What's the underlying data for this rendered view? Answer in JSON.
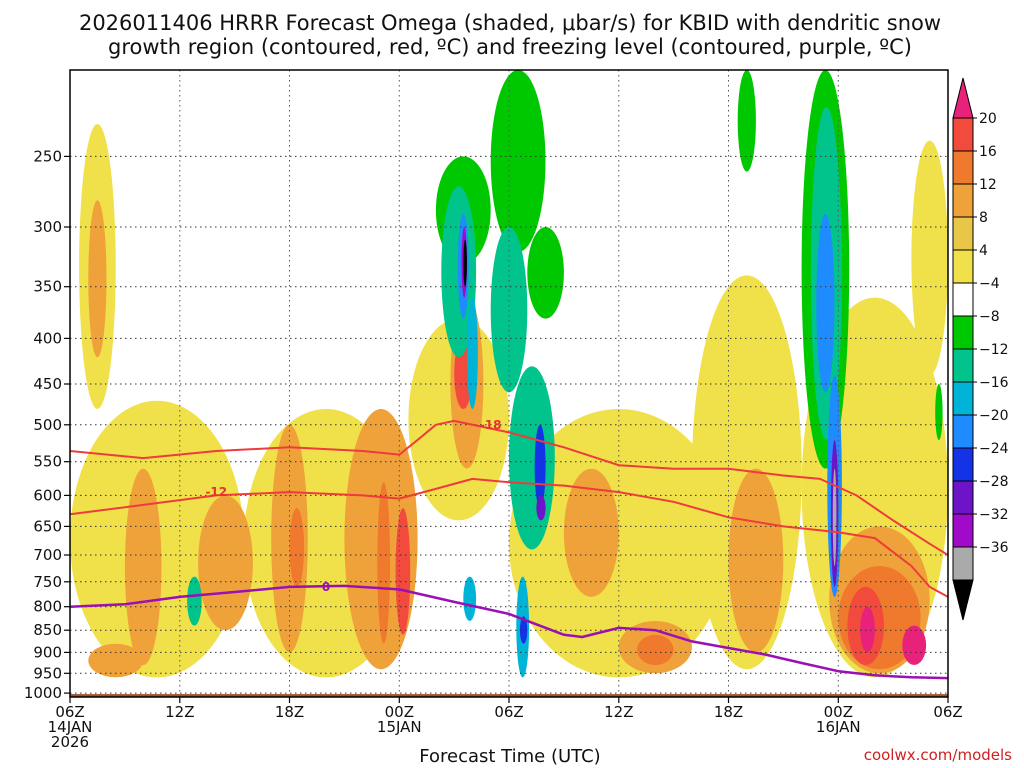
{
  "chart_data": {
    "type": "heatmap",
    "title_lines": [
      "2026011406 HRRR Forecast Omega (shaded, μbar/s) for KBID with dendritic snow",
      "growth region (contoured, red, ºC) and freezing level (contoured, purple, ºC)"
    ],
    "xlabel": "Forecast Time (UTC)",
    "ylabel": "",
    "credit": "coolwx.com/models",
    "x_range_hours": [
      0,
      48
    ],
    "x_ticks": [
      {
        "hour": 0,
        "lines": [
          "06Z",
          "14JAN",
          "2026"
        ]
      },
      {
        "hour": 6,
        "lines": [
          "12Z"
        ]
      },
      {
        "hour": 12,
        "lines": [
          "18Z"
        ]
      },
      {
        "hour": 18,
        "lines": [
          "00Z",
          "15JAN"
        ]
      },
      {
        "hour": 24,
        "lines": [
          "06Z"
        ]
      },
      {
        "hour": 30,
        "lines": [
          "12Z"
        ]
      },
      {
        "hour": 36,
        "lines": [
          "18Z"
        ]
      },
      {
        "hour": 42,
        "lines": [
          "00Z",
          "16JAN"
        ]
      },
      {
        "hour": 48,
        "lines": [
          "06Z"
        ]
      }
    ],
    "y_ticks_hpa": [
      250,
      300,
      350,
      400,
      450,
      500,
      550,
      600,
      650,
      700,
      750,
      800,
      850,
      900,
      950,
      1000
    ],
    "y_range_hpa": [
      200,
      1010
    ],
    "colorbar": {
      "labels": [
        "20",
        "16",
        "12",
        "8",
        "4",
        "−4",
        "−8",
        "−12",
        "−16",
        "−20",
        "−24",
        "−28",
        "−32",
        "−36"
      ],
      "colors": [
        "#e8217a",
        "#f24a3c",
        "#ef7a2e",
        "#f0a23a",
        "#e8c648",
        "#f0e04a",
        "#ffffff",
        "#00c800",
        "#00c48c",
        "#00b4d8",
        "#1e8cff",
        "#1432e6",
        "#6e14c8",
        "#a00ac8",
        "#aaaaaa",
        "#000000"
      ]
    },
    "shaded_cells": [
      {
        "t0": 0.5,
        "t1": 2.5,
        "p0": 230,
        "p1": 480,
        "omega": 4
      },
      {
        "t0": 1.0,
        "t1": 2.0,
        "p0": 280,
        "p1": 420,
        "omega": 8
      },
      {
        "t0": 0.0,
        "t1": 9.5,
        "p0": 470,
        "p1": 960,
        "omega": 4
      },
      {
        "t0": 9.5,
        "t1": 18.5,
        "p0": 480,
        "p1": 960,
        "omega": 4
      },
      {
        "t0": 3.0,
        "t1": 5.0,
        "p0": 560,
        "p1": 930,
        "omega": 8
      },
      {
        "t0": 7.0,
        "t1": 10.0,
        "p0": 600,
        "p1": 850,
        "omega": 8
      },
      {
        "t0": 11.0,
        "t1": 13.0,
        "p0": 500,
        "p1": 900,
        "omega": 8
      },
      {
        "t0": 12.0,
        "t1": 12.8,
        "p0": 620,
        "p1": 760,
        "omega": 12
      },
      {
        "t0": 15.0,
        "t1": 19.0,
        "p0": 480,
        "p1": 940,
        "omega": 8
      },
      {
        "t0": 16.8,
        "t1": 17.5,
        "p0": 580,
        "p1": 880,
        "omega": 12
      },
      {
        "t0": 17.8,
        "t1": 18.6,
        "p0": 620,
        "p1": 860,
        "omega": 16
      },
      {
        "t0": 1.0,
        "t1": 4.0,
        "p0": 880,
        "p1": 960,
        "omega": 8
      },
      {
        "t0": 18.5,
        "t1": 24.0,
        "p0": 380,
        "p1": 640,
        "omega": 4
      },
      {
        "t0": 20.8,
        "t1": 22.6,
        "p0": 360,
        "p1": 560,
        "omega": 8
      },
      {
        "t0": 21.0,
        "t1": 22.0,
        "p0": 400,
        "p1": 480,
        "omega": 16
      },
      {
        "t0": 24.0,
        "t1": 36.0,
        "p0": 480,
        "p1": 960,
        "omega": 4
      },
      {
        "t0": 27.0,
        "t1": 30.0,
        "p0": 560,
        "p1": 780,
        "omega": 8
      },
      {
        "t0": 30.0,
        "t1": 34.0,
        "p0": 830,
        "p1": 950,
        "omega": 8
      },
      {
        "t0": 31.0,
        "t1": 33.0,
        "p0": 860,
        "p1": 930,
        "omega": 12
      },
      {
        "t0": 34.0,
        "t1": 40.0,
        "p0": 340,
        "p1": 940,
        "omega": 4
      },
      {
        "t0": 36.0,
        "t1": 39.0,
        "p0": 560,
        "p1": 900,
        "omega": 8
      },
      {
        "t0": 40.0,
        "t1": 48.0,
        "p0": 360,
        "p1": 960,
        "omega": 4
      },
      {
        "t0": 41.5,
        "t1": 47.0,
        "p0": 650,
        "p1": 950,
        "omega": 8
      },
      {
        "t0": 42.0,
        "t1": 46.5,
        "p0": 720,
        "p1": 940,
        "omega": 12
      },
      {
        "t0": 42.5,
        "t1": 44.5,
        "p0": 760,
        "p1": 930,
        "omega": 16
      },
      {
        "t0": 43.2,
        "t1": 44.0,
        "p0": 800,
        "p1": 900,
        "omega": 20
      },
      {
        "t0": 45.5,
        "t1": 46.8,
        "p0": 840,
        "p1": 930,
        "omega": 20
      },
      {
        "t0": 46.0,
        "t1": 48.0,
        "p0": 240,
        "p1": 440,
        "omega": 4
      },
      {
        "t0": 20.0,
        "t1": 23.0,
        "p0": 250,
        "p1": 330,
        "omega": -4
      },
      {
        "t0": 20.3,
        "t1": 22.2,
        "p0": 270,
        "p1": 420,
        "omega": -8
      },
      {
        "t0": 21.2,
        "t1": 21.8,
        "p0": 290,
        "p1": 380,
        "omega": -16
      },
      {
        "t0": 21.4,
        "t1": 21.7,
        "p0": 300,
        "p1": 360,
        "omega": -28
      },
      {
        "t0": 21.5,
        "t1": 21.7,
        "p0": 310,
        "p1": 350,
        "omega": -36
      },
      {
        "t0": 21.7,
        "t1": 22.3,
        "p0": 360,
        "p1": 480,
        "omega": -12
      },
      {
        "t0": 23.0,
        "t1": 26.0,
        "p0": 200,
        "p1": 320,
        "omega": -4
      },
      {
        "t0": 23.0,
        "t1": 25.0,
        "p0": 300,
        "p1": 460,
        "omega": -8
      },
      {
        "t0": 25.0,
        "t1": 27.0,
        "p0": 300,
        "p1": 380,
        "omega": -4
      },
      {
        "t0": 24.0,
        "t1": 26.5,
        "p0": 430,
        "p1": 690,
        "omega": -8
      },
      {
        "t0": 25.4,
        "t1": 26.0,
        "p0": 500,
        "p1": 620,
        "omega": -20
      },
      {
        "t0": 25.5,
        "t1": 26.0,
        "p0": 600,
        "p1": 640,
        "omega": -24
      },
      {
        "t0": 21.5,
        "t1": 22.2,
        "p0": 740,
        "p1": 830,
        "omega": -12
      },
      {
        "t0": 24.4,
        "t1": 25.1,
        "p0": 740,
        "p1": 960,
        "omega": -12
      },
      {
        "t0": 24.6,
        "t1": 25.0,
        "p0": 820,
        "p1": 880,
        "omega": -20
      },
      {
        "t0": 6.4,
        "t1": 7.2,
        "p0": 740,
        "p1": 840,
        "omega": -8
      },
      {
        "t0": 40.0,
        "t1": 42.6,
        "p0": 200,
        "p1": 560,
        "omega": -4
      },
      {
        "t0": 40.5,
        "t1": 42.2,
        "p0": 220,
        "p1": 520,
        "omega": -8
      },
      {
        "t0": 40.8,
        "t1": 41.8,
        "p0": 290,
        "p1": 460,
        "omega": -16
      },
      {
        "t0": 41.4,
        "t1": 42.2,
        "p0": 440,
        "p1": 780,
        "omega": -16
      },
      {
        "t0": 41.6,
        "t1": 42.0,
        "p0": 520,
        "p1": 760,
        "omega": -24
      },
      {
        "t0": 41.7,
        "t1": 41.9,
        "p0": 560,
        "p1": 720,
        "omega": -32
      },
      {
        "t0": 36.5,
        "t1": 37.5,
        "p0": 200,
        "p1": 260,
        "omega": -4
      },
      {
        "t0": 47.3,
        "t1": 47.7,
        "p0": 450,
        "p1": 520,
        "omega": -4
      }
    ],
    "dendritic_isotherms": [
      {
        "label": "-18",
        "label_hour": 23,
        "label_hpa": 500,
        "points": [
          [
            0,
            535
          ],
          [
            4,
            545
          ],
          [
            8,
            535
          ],
          [
            12,
            530
          ],
          [
            16,
            535
          ],
          [
            18,
            540
          ],
          [
            19,
            520
          ],
          [
            20,
            500
          ],
          [
            21,
            495
          ],
          [
            24,
            510
          ],
          [
            27,
            530
          ],
          [
            30,
            555
          ],
          [
            33,
            560
          ],
          [
            36,
            560
          ],
          [
            39,
            570
          ],
          [
            41,
            575
          ],
          [
            43,
            600
          ],
          [
            45,
            640
          ],
          [
            47,
            680
          ],
          [
            48,
            700
          ]
        ]
      },
      {
        "label": "-12",
        "label_hour": 8,
        "label_hpa": 595,
        "points": [
          [
            0,
            630
          ],
          [
            4,
            615
          ],
          [
            8,
            600
          ],
          [
            12,
            595
          ],
          [
            16,
            600
          ],
          [
            18,
            605
          ],
          [
            20,
            590
          ],
          [
            22,
            575
          ],
          [
            24,
            580
          ],
          [
            27,
            585
          ],
          [
            30,
            595
          ],
          [
            33,
            610
          ],
          [
            36,
            635
          ],
          [
            39,
            650
          ],
          [
            42,
            660
          ],
          [
            44,
            670
          ],
          [
            46,
            720
          ],
          [
            47,
            760
          ],
          [
            48,
            780
          ]
        ]
      }
    ],
    "freezing_level": {
      "label": "0",
      "label_hour": 14,
      "label_hpa": 760,
      "points": [
        [
          0,
          800
        ],
        [
          3,
          795
        ],
        [
          6,
          780
        ],
        [
          9,
          770
        ],
        [
          12,
          760
        ],
        [
          15,
          758
        ],
        [
          18,
          765
        ],
        [
          21,
          790
        ],
        [
          24,
          815
        ],
        [
          27,
          860
        ],
        [
          28,
          865
        ],
        [
          30,
          845
        ],
        [
          32,
          850
        ],
        [
          34,
          875
        ],
        [
          36,
          890
        ],
        [
          38,
          905
        ],
        [
          40,
          925
        ],
        [
          42,
          945
        ],
        [
          44,
          955
        ],
        [
          46,
          960
        ],
        [
          48,
          962
        ]
      ]
    }
  }
}
